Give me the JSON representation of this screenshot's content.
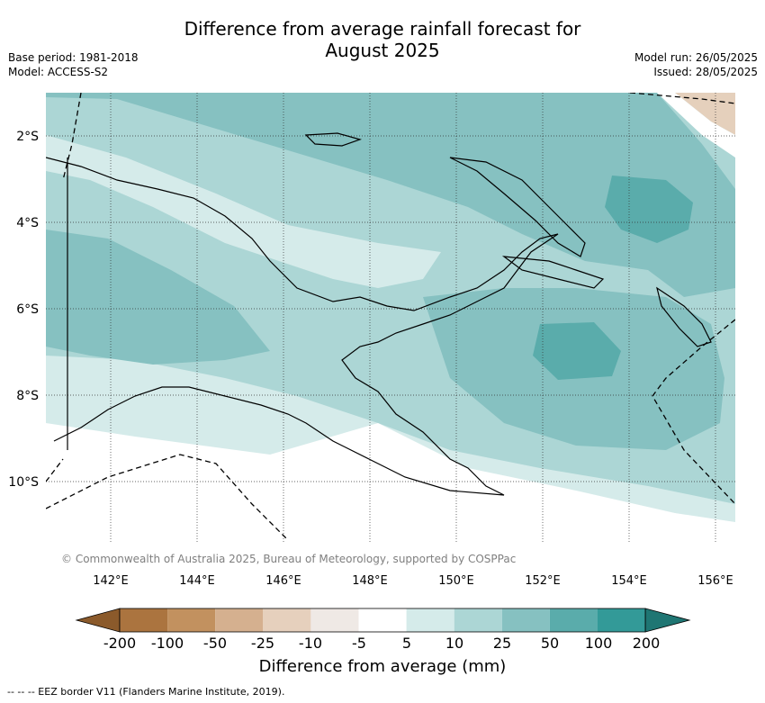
{
  "header": {
    "title_line1": "Difference from average rainfall forecast for",
    "title_line2": "August 2025",
    "base_period": "Base period: 1981-2018",
    "model": "Model: ACCESS-S2",
    "model_run": "Model run: 26/05/2025",
    "issued": "Issued: 28/05/2025"
  },
  "map": {
    "attribution": "© Commonwealth of Australia 2025, Bureau of Meteorology, supported by COSPPac",
    "lat_labels": [
      "2°S",
      "4°S",
      "6°S",
      "8°S",
      "10°S"
    ],
    "lon_labels": [
      "142°E",
      "144°E",
      "146°E",
      "148°E",
      "150°E",
      "152°E",
      "154°E",
      "156°E"
    ],
    "colors": {
      "water_ocean": "#ffffff",
      "band_5_10": "#d5ebea",
      "band_10_25": "#acd6d5",
      "band_25_50": "#86c1c1",
      "band_50_100": "#5aacab",
      "band_dry_10": "#e5d0bc",
      "band_dry_25": "#d3af8f"
    }
  },
  "legend": {
    "title": "Difference from average (mm)",
    "labels": [
      "-200",
      "-100",
      "-50",
      "-25",
      "-10",
      "-5",
      "5",
      "10",
      "25",
      "50",
      "100",
      "200"
    ],
    "colors": [
      "#8b5a2b",
      "#ab743f",
      "#c2915f",
      "#d5b08f",
      "#e6d0bd",
      "#efe9e5",
      "#ffffff",
      "#d5ebea",
      "#acd6d5",
      "#86c1c1",
      "#5aacab",
      "#339a98",
      "#1f7673"
    ]
  },
  "footnote": "-- -- -- EEZ border V11 (Flanders Marine Institute, 2019)."
}
